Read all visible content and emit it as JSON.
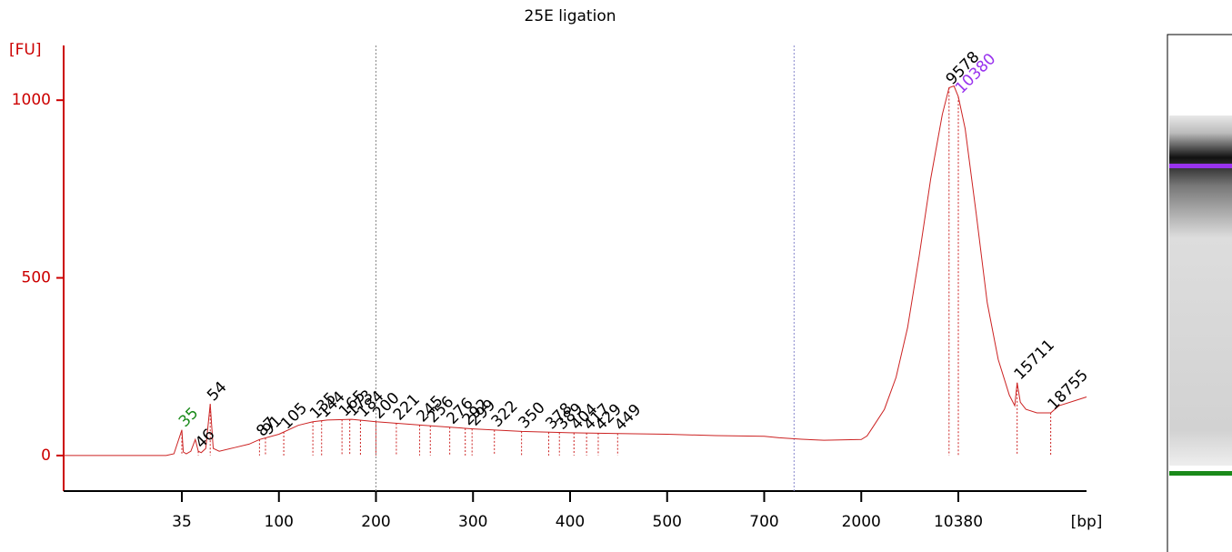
{
  "chart_data": {
    "type": "electropherogram",
    "title": "25E ligation",
    "ylabel": "[FU]",
    "xlabel": "[bp]",
    "axis_color": "#cc0000",
    "trace_color": "#cc2222",
    "xlim": [
      20,
      22000
    ],
    "xticks": [
      35,
      100,
      200,
      300,
      400,
      500,
      700,
      2000,
      10380
    ],
    "xtick_colors": {
      "0": "#000000"
    },
    "ylim": [
      -100,
      1154
    ],
    "yticks": [
      0,
      500,
      1000
    ],
    "x": [
      20,
      33,
      34,
      35,
      36,
      38,
      41,
      44,
      46,
      48,
      51,
      54,
      56,
      60,
      70,
      80,
      87,
      100,
      120,
      135,
      150,
      175,
      200,
      250,
      300,
      350,
      400,
      450,
      500,
      600,
      700,
      900,
      1200,
      1500,
      2000,
      2500,
      3000,
      4000,
      5000,
      6000,
      7000,
      8000,
      9000,
      9578,
      10000,
      10380,
      11000,
      12000,
      13000,
      14000,
      15000,
      15500,
      15711,
      16000,
      16500,
      17500,
      18755,
      19500,
      21000,
      22000
    ],
    "y": [
      0,
      0,
      5,
      72,
      10,
      5,
      12,
      45,
      12,
      8,
      20,
      145,
      20,
      12,
      22,
      32,
      45,
      60,
      85,
      95,
      100,
      102,
      95,
      85,
      75,
      68,
      64,
      62,
      60,
      56,
      54,
      50,
      46,
      43,
      45,
      55,
      80,
      130,
      220,
      360,
      560,
      780,
      960,
      1035,
      1040,
      1010,
      920,
      680,
      430,
      270,
      170,
      140,
      205,
      150,
      130,
      120,
      120,
      140,
      155,
      165
    ],
    "peak_labels": [
      {
        "bp": 35,
        "color": "#1a8a1a"
      },
      {
        "bp": 46,
        "color": "#000000"
      },
      {
        "bp": 54,
        "color": "#000000"
      },
      {
        "bp": 87,
        "color": "#000000"
      },
      {
        "bp": 91,
        "color": "#000000"
      },
      {
        "bp": 105,
        "color": "#000000"
      },
      {
        "bp": 135,
        "color": "#000000"
      },
      {
        "bp": 144,
        "color": "#000000"
      },
      {
        "bp": 165,
        "color": "#000000"
      },
      {
        "bp": 173,
        "color": "#000000"
      },
      {
        "bp": 184,
        "color": "#000000"
      },
      {
        "bp": 200,
        "color": "#000000"
      },
      {
        "bp": 221,
        "color": "#000000"
      },
      {
        "bp": 245,
        "color": "#000000"
      },
      {
        "bp": 256,
        "color": "#000000"
      },
      {
        "bp": 276,
        "color": "#000000"
      },
      {
        "bp": 292,
        "color": "#000000"
      },
      {
        "bp": 299,
        "color": "#000000"
      },
      {
        "bp": 322,
        "color": "#000000"
      },
      {
        "bp": 350,
        "color": "#000000"
      },
      {
        "bp": 378,
        "color": "#000000"
      },
      {
        "bp": 389,
        "color": "#000000"
      },
      {
        "bp": 404,
        "color": "#000000"
      },
      {
        "bp": 417,
        "color": "#000000"
      },
      {
        "bp": 429,
        "color": "#000000"
      },
      {
        "bp": 449,
        "color": "#000000"
      },
      {
        "bp": 9578,
        "color": "#000000"
      },
      {
        "bp": 10380,
        "color": "#9933ee"
      },
      {
        "bp": 15711,
        "color": "#000000"
      },
      {
        "bp": 18755,
        "color": "#000000"
      }
    ],
    "region_lines": [
      {
        "bp": 200,
        "color": "#888888"
      },
      {
        "bp": 1100,
        "color": "#8888cc"
      }
    ]
  }
}
